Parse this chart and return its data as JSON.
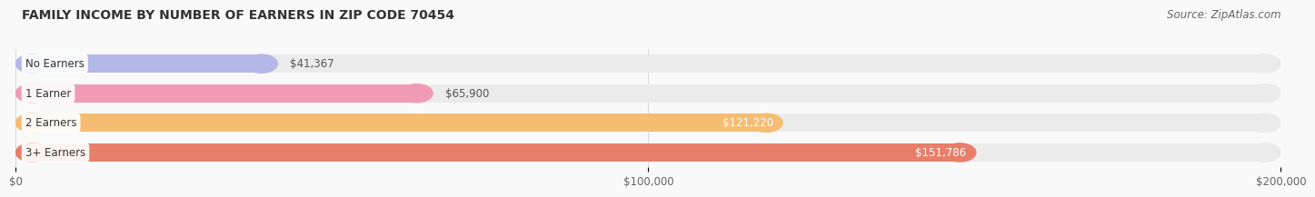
{
  "title": "FAMILY INCOME BY NUMBER OF EARNERS IN ZIP CODE 70454",
  "source": "Source: ZipAtlas.com",
  "categories": [
    "No Earners",
    "1 Earner",
    "2 Earners",
    "3+ Earners"
  ],
  "values": [
    41367,
    65900,
    121220,
    151786
  ],
  "bar_colors": [
    "#b4b8e8",
    "#f09ab5",
    "#f5bc72",
    "#e87e6a"
  ],
  "bar_bg_color": "#ebebeb",
  "label_colors": [
    "#555555",
    "#555555",
    "#ffffff",
    "#ffffff"
  ],
  "xlim": [
    0,
    200000
  ],
  "xticks": [
    0,
    100000,
    200000
  ],
  "xtick_labels": [
    "$0",
    "$100,000",
    "$200,000"
  ],
  "title_fontsize": 10,
  "source_fontsize": 8.5,
  "bar_height": 0.62,
  "background_color": "#f9f9f9",
  "value_label_outside_color": "#555555",
  "value_label_inside_color": "#ffffff"
}
